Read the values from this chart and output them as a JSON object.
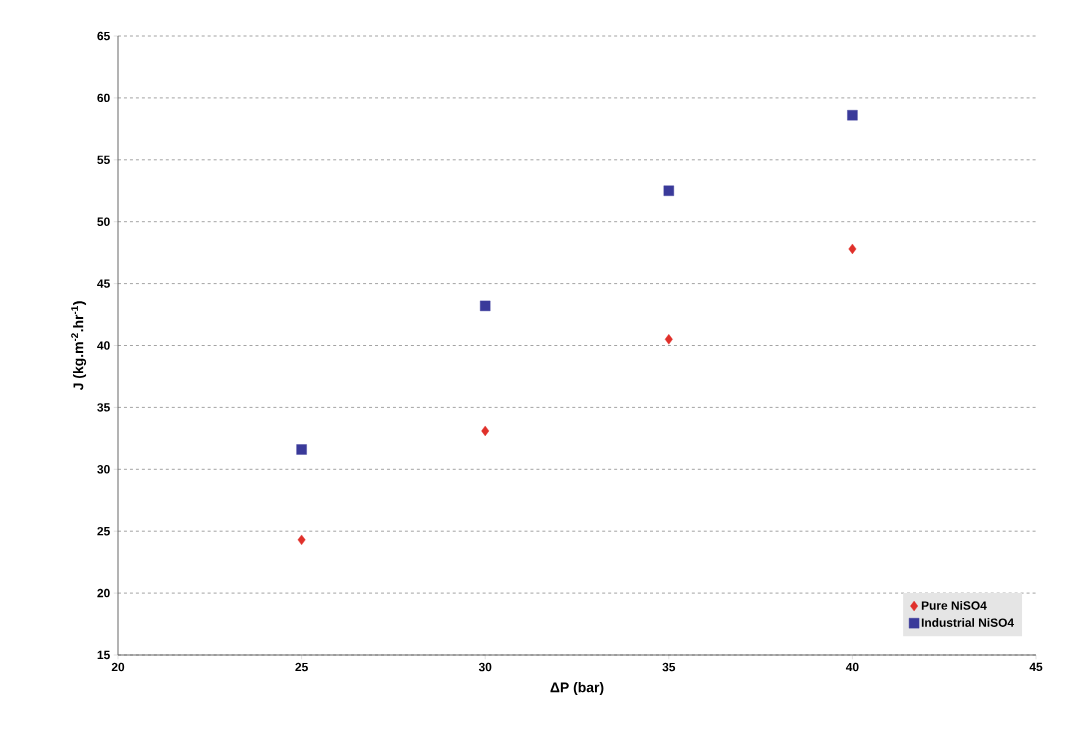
{
  "chart_data": {
    "type": "scatter",
    "xlabel": "ΔP (bar)",
    "ylabel": "J (kg.m$^{-2}$.hr$^{-1}$)",
    "x": [
      25,
      30,
      35,
      40
    ],
    "series": [
      {
        "name": "Pure NiSO4",
        "color": "#e0302a",
        "marker": "diamond",
        "values": [
          24.3,
          33.1,
          40.5,
          47.8
        ]
      },
      {
        "name": "Industrial NiSO4",
        "color": "#3a3a9a",
        "marker": "square",
        "values": [
          31.6,
          43.2,
          52.5,
          58.6
        ]
      }
    ],
    "xlim": [
      20,
      45
    ],
    "xticks": [
      20,
      25,
      30,
      35,
      40,
      45
    ],
    "ylim": [
      15,
      65
    ],
    "yticks": [
      15,
      20,
      25,
      30,
      35,
      40,
      45,
      50,
      55,
      60,
      65
    ],
    "grid": "y",
    "legend": "bottom right"
  }
}
